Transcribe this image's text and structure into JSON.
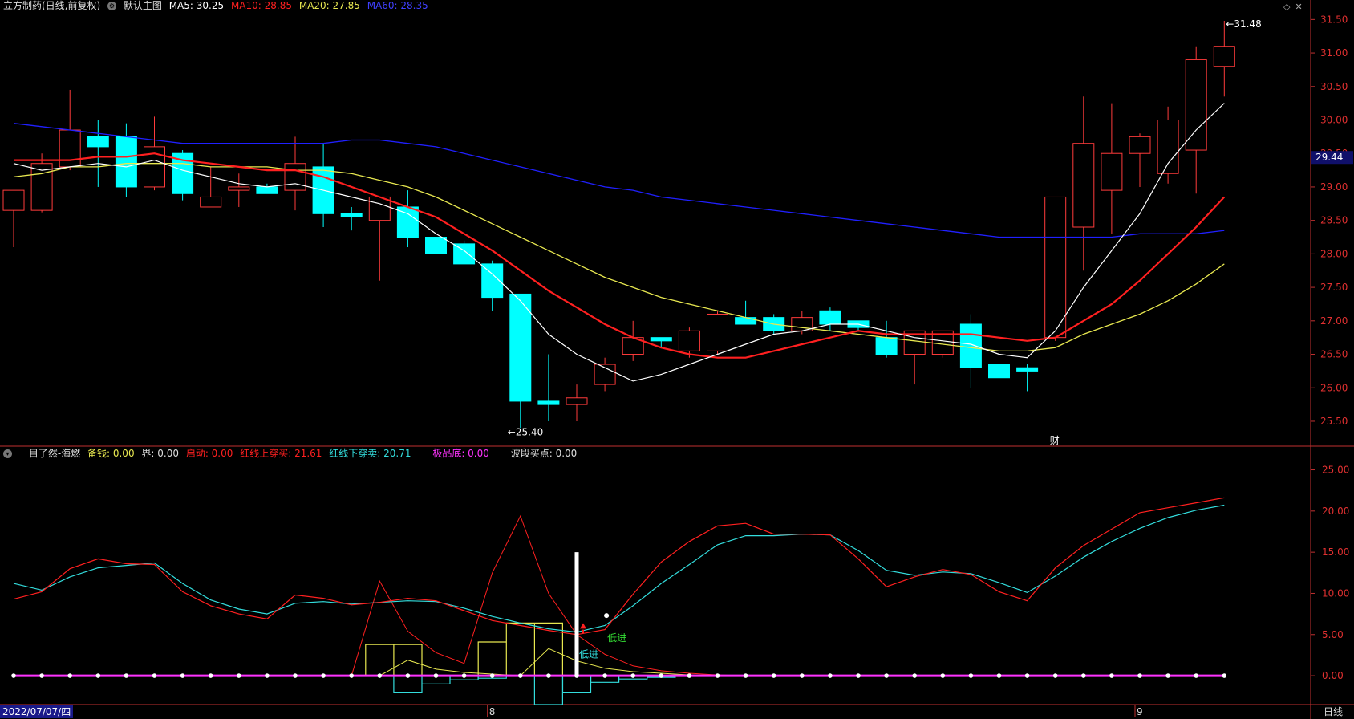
{
  "main_header": {
    "title": "立方制药(日线,前复权)",
    "indicator_label": "默认主图",
    "ma5": "MA5: 30.25",
    "ma10": "MA10: 28.85",
    "ma20": "MA20: 27.85",
    "ma60": "MA60: 28.35"
  },
  "sub_header": {
    "title": "一目了然-海燃",
    "beiqian": "备钱: 0.00",
    "jie": "界: 0.00",
    "qidong": "启动: 0.00",
    "hongxian_up": "红线上穿买: 21.61",
    "hongxian_down": "红线下穿卖: 20.71",
    "jipindi": "极品底: 0.00",
    "boduan": "波段买点: 0.00"
  },
  "bottom_bar": {
    "date": "2022/07/07/四",
    "period": "日线"
  },
  "colors": {
    "up": "#ff3b3b",
    "down": "#00ffff",
    "ma5": "#ffffff",
    "ma10": "#ff2020",
    "ma20": "#e8e850",
    "ma60": "#2020ff",
    "axis": "#c03030",
    "magenta": "#ff33ff"
  },
  "chart_data": [
    {
      "type": "candlestick",
      "title": "立方制药(日线,前复权)",
      "ylim": [
        25.2,
        31.6
      ],
      "y_ticks": [
        "31.50",
        "31.00",
        "30.50",
        "30.00",
        "29.50",
        "29.00",
        "28.50",
        "28.00",
        "27.50",
        "27.00",
        "26.50",
        "26.00",
        "25.50"
      ],
      "current_price_label": "29.44",
      "current_price": 29.44,
      "candles": [
        {
          "o": 28.65,
          "h": 28.9,
          "l": 28.1,
          "c": 28.95
        },
        {
          "o": 28.65,
          "h": 29.5,
          "l": 28.62,
          "c": 29.35
        },
        {
          "o": 29.3,
          "h": 30.45,
          "l": 29.25,
          "c": 29.85
        },
        {
          "o": 29.75,
          "h": 30.0,
          "l": 29.0,
          "c": 29.6
        },
        {
          "o": 29.75,
          "h": 29.95,
          "l": 28.85,
          "c": 29.0
        },
        {
          "o": 29.0,
          "h": 30.05,
          "l": 28.95,
          "c": 29.6
        },
        {
          "o": 29.5,
          "h": 29.55,
          "l": 28.8,
          "c": 28.9
        },
        {
          "o": 28.7,
          "h": 29.3,
          "l": 28.7,
          "c": 28.85
        },
        {
          "o": 28.95,
          "h": 29.2,
          "l": 28.7,
          "c": 29.0
        },
        {
          "o": 29.0,
          "h": 29.05,
          "l": 28.9,
          "c": 28.9
        },
        {
          "o": 28.95,
          "h": 29.75,
          "l": 28.65,
          "c": 29.35
        },
        {
          "o": 29.3,
          "h": 29.65,
          "l": 28.4,
          "c": 28.6
        },
        {
          "o": 28.6,
          "h": 28.7,
          "l": 28.35,
          "c": 28.55
        },
        {
          "o": 28.5,
          "h": 28.8,
          "l": 27.6,
          "c": 28.85
        },
        {
          "o": 28.7,
          "h": 28.95,
          "l": 28.1,
          "c": 28.25
        },
        {
          "o": 28.25,
          "h": 28.35,
          "l": 28.0,
          "c": 28.0
        },
        {
          "o": 28.15,
          "h": 28.2,
          "l": 27.85,
          "c": 27.85
        },
        {
          "o": 27.85,
          "h": 27.9,
          "l": 27.15,
          "c": 27.35
        },
        {
          "o": 27.4,
          "h": 27.4,
          "l": 25.4,
          "c": 25.8
        },
        {
          "o": 25.8,
          "h": 26.5,
          "l": 25.5,
          "c": 25.75
        },
        {
          "o": 25.75,
          "h": 26.05,
          "l": 25.5,
          "c": 25.85
        },
        {
          "o": 26.05,
          "h": 26.45,
          "l": 25.95,
          "c": 26.35
        },
        {
          "o": 26.5,
          "h": 27.0,
          "l": 26.4,
          "c": 26.75
        },
        {
          "o": 26.75,
          "h": 26.75,
          "l": 26.6,
          "c": 26.7
        },
        {
          "o": 26.55,
          "h": 26.9,
          "l": 26.45,
          "c": 26.85
        },
        {
          "o": 26.55,
          "h": 27.15,
          "l": 26.5,
          "c": 27.1
        },
        {
          "o": 27.05,
          "h": 27.3,
          "l": 26.95,
          "c": 26.95
        },
        {
          "o": 27.05,
          "h": 27.1,
          "l": 26.8,
          "c": 26.85
        },
        {
          "o": 26.85,
          "h": 27.15,
          "l": 26.8,
          "c": 27.05
        },
        {
          "o": 27.15,
          "h": 27.2,
          "l": 26.85,
          "c": 26.95
        },
        {
          "o": 27.0,
          "h": 27.0,
          "l": 26.85,
          "c": 26.9
        },
        {
          "o": 26.75,
          "h": 27.0,
          "l": 26.45,
          "c": 26.5
        },
        {
          "o": 26.5,
          "h": 26.85,
          "l": 26.05,
          "c": 26.85
        },
        {
          "o": 26.5,
          "h": 26.85,
          "l": 26.45,
          "c": 26.85
        },
        {
          "o": 26.95,
          "h": 27.1,
          "l": 26.0,
          "c": 26.3
        },
        {
          "o": 26.35,
          "h": 26.45,
          "l": 25.9,
          "c": 26.15
        },
        {
          "o": 26.3,
          "h": 26.35,
          "l": 25.95,
          "c": 26.25
        },
        {
          "o": 26.75,
          "h": 28.85,
          "l": 26.7,
          "c": 28.85
        },
        {
          "o": 28.4,
          "h": 30.35,
          "l": 27.75,
          "c": 29.65
        },
        {
          "o": 28.95,
          "h": 30.25,
          "l": 28.3,
          "c": 29.5
        },
        {
          "o": 29.5,
          "h": 29.8,
          "l": 29.0,
          "c": 29.75
        },
        {
          "o": 29.2,
          "h": 30.2,
          "l": 29.05,
          "c": 30.0
        },
        {
          "o": 29.55,
          "h": 31.1,
          "l": 28.9,
          "c": 30.9
        },
        {
          "o": 30.8,
          "h": 31.48,
          "l": 30.35,
          "c": 31.1
        }
      ],
      "ma5": [
        29.35,
        29.25,
        29.3,
        29.35,
        29.3,
        29.4,
        29.25,
        29.15,
        29.05,
        29.0,
        29.05,
        28.95,
        28.85,
        28.75,
        28.6,
        28.3,
        28.05,
        27.7,
        27.3,
        26.8,
        26.5,
        26.3,
        26.1,
        26.2,
        26.35,
        26.5,
        26.65,
        26.8,
        26.85,
        26.95,
        26.95,
        26.85,
        26.75,
        26.7,
        26.65,
        26.5,
        26.45,
        26.85,
        27.5,
        28.05,
        28.6,
        29.35,
        29.85,
        30.25
      ],
      "ma10": [
        29.4,
        29.4,
        29.4,
        29.45,
        29.45,
        29.5,
        29.4,
        29.35,
        29.3,
        29.25,
        29.25,
        29.15,
        29.0,
        28.85,
        28.7,
        28.55,
        28.3,
        28.05,
        27.75,
        27.45,
        27.2,
        26.95,
        26.75,
        26.6,
        26.5,
        26.45,
        26.45,
        26.55,
        26.65,
        26.75,
        26.85,
        26.8,
        26.8,
        26.8,
        26.8,
        26.75,
        26.7,
        26.75,
        27.0,
        27.25,
        27.6,
        28.0,
        28.4,
        28.85
      ],
      "ma20": [
        29.15,
        29.2,
        29.3,
        29.3,
        29.35,
        29.35,
        29.35,
        29.3,
        29.3,
        29.3,
        29.25,
        29.25,
        29.2,
        29.1,
        29.0,
        28.85,
        28.65,
        28.45,
        28.25,
        28.05,
        27.85,
        27.65,
        27.5,
        27.35,
        27.25,
        27.15,
        27.05,
        26.95,
        26.9,
        26.85,
        26.8,
        26.75,
        26.7,
        26.65,
        26.6,
        26.55,
        26.55,
        26.6,
        26.8,
        26.95,
        27.1,
        27.3,
        27.55,
        27.85
      ],
      "ma60": [
        29.95,
        29.9,
        29.85,
        29.8,
        29.75,
        29.7,
        29.65,
        29.65,
        29.65,
        29.65,
        29.65,
        29.65,
        29.7,
        29.7,
        29.65,
        29.6,
        29.5,
        29.4,
        29.3,
        29.2,
        29.1,
        29.0,
        28.95,
        28.85,
        28.8,
        28.75,
        28.7,
        28.65,
        28.6,
        28.55,
        28.5,
        28.45,
        28.4,
        28.35,
        28.3,
        28.25,
        28.25,
        28.25,
        28.25,
        28.25,
        28.3,
        28.3,
        28.3,
        28.35
      ],
      "annotations": [
        {
          "label": "31.48",
          "index": 43,
          "price": 31.48
        },
        {
          "label": "25.40",
          "index": 18,
          "price": 25.4
        },
        {
          "label": "财",
          "index": 37
        }
      ]
    },
    {
      "type": "line",
      "title": "一目了然-海燃",
      "ylim": [
        -3.5,
        27
      ],
      "y_ticks": [
        "25.00",
        "20.00",
        "15.00",
        "10.00",
        "5.00",
        "0.00"
      ],
      "series": [
        {
          "name": "红线上穿买",
          "values": [
            9.3,
            10.2,
            13.0,
            14.2,
            13.6,
            13.5,
            10.2,
            8.5,
            7.5,
            6.9,
            9.8,
            9.4,
            8.6,
            8.9,
            9.4,
            9.1,
            7.9,
            6.7,
            6.1,
            5.5,
            5.0,
            5.6,
            9.9,
            13.8,
            16.3,
            18.2,
            18.5,
            17.2,
            17.2,
            17.1,
            14.2,
            10.8,
            12.0,
            12.9,
            12.3,
            10.2,
            9.1,
            13.1,
            15.8,
            17.8,
            19.8,
            20.4,
            21.0,
            21.61
          ]
        },
        {
          "name": "红线下穿卖",
          "values": [
            11.2,
            10.4,
            12.0,
            13.1,
            13.4,
            13.7,
            11.2,
            9.2,
            8.1,
            7.5,
            8.8,
            9.0,
            8.7,
            8.9,
            9.1,
            9.0,
            8.2,
            7.2,
            6.4,
            5.7,
            5.3,
            6.1,
            8.5,
            11.2,
            13.5,
            15.9,
            17.0,
            17.0,
            17.2,
            17.1,
            15.2,
            12.8,
            12.2,
            12.6,
            12.4,
            11.3,
            10.1,
            12.1,
            14.4,
            16.3,
            17.9,
            19.2,
            20.1,
            20.71
          ]
        }
      ],
      "spikes": [
        {
          "name": "启动",
          "values": [
            0,
            0,
            0,
            0,
            0,
            0,
            0,
            0,
            0,
            0,
            0,
            0,
            0,
            11.5,
            5.4,
            2.8,
            1.5,
            12.5,
            19.4,
            10.0,
            5.0,
            2.6,
            1.2,
            0.6,
            0.3,
            0.1,
            0,
            0,
            0,
            0,
            0,
            0,
            0,
            0,
            0,
            0,
            0,
            0,
            0,
            0,
            0,
            0,
            0,
            0
          ]
        }
      ],
      "steps": [
        {
          "name": "备钱",
          "values": [
            0,
            0,
            0,
            0,
            0,
            0,
            0,
            0,
            0,
            0,
            0,
            0,
            0,
            3.8,
            3.8,
            0,
            0,
            4.1,
            6.4,
            6.4,
            0,
            0,
            0,
            0,
            0,
            0,
            0,
            0,
            0,
            0,
            0,
            0,
            0,
            0,
            0,
            0,
            0,
            0,
            0,
            0,
            0,
            0,
            0,
            0
          ]
        },
        {
          "name": "界",
          "values": [
            0,
            0,
            0,
            0,
            0,
            0,
            0,
            0,
            0,
            0,
            0,
            0,
            0,
            0,
            -2.0,
            -1.0,
            -0.5,
            -0.3,
            0,
            -3.5,
            -2.0,
            -0.8,
            -0.4,
            -0.2,
            0,
            0,
            0,
            0,
            0,
            0,
            0,
            0,
            0,
            0,
            0,
            0,
            0,
            0,
            0,
            0,
            0,
            0,
            0,
            0
          ]
        }
      ],
      "yellow_line": [
        0,
        0,
        0,
        0,
        0,
        0,
        0,
        0,
        0,
        0,
        0,
        0,
        0,
        0,
        1.9,
        0.8,
        0.4,
        0.2,
        0,
        3.3,
        1.8,
        0.9,
        0.5,
        0.3,
        0.1,
        0,
        0,
        0,
        0,
        0,
        0,
        0,
        0,
        0,
        0,
        0,
        0,
        0,
        0,
        0,
        0,
        0,
        0,
        0
      ],
      "signals": [
        {
          "label": "低进",
          "index": 20
        },
        {
          "label": "低进",
          "index": 21
        }
      ],
      "bar_marker": {
        "index": 20,
        "value": 15.0
      }
    }
  ],
  "x_axis": {
    "month_labels": [
      {
        "label": "8",
        "index": 17
      },
      {
        "label": "9",
        "index": 40
      }
    ]
  }
}
